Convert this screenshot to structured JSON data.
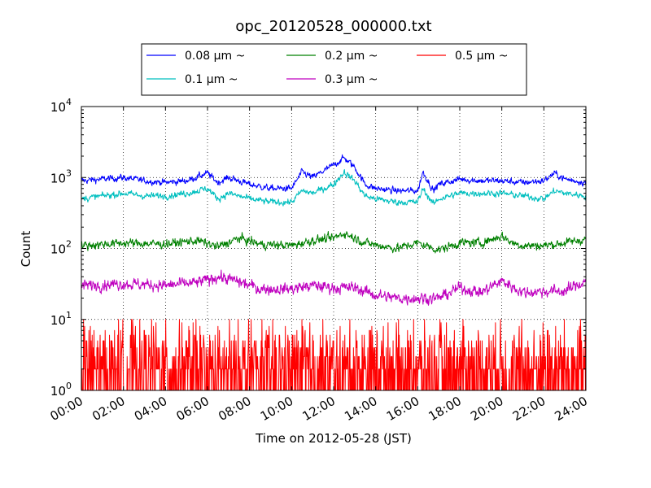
{
  "chart_data": {
    "type": "line",
    "title": "opc_20120528_000000.txt",
    "xlabel": "Time on 2012-05-28 (JST)",
    "ylabel": "Count",
    "y_scale": "log",
    "ylim": [
      1,
      10000
    ],
    "y_ticks": [
      {
        "base": "10",
        "exp": "0",
        "value": 1
      },
      {
        "base": "10",
        "exp": "1",
        "value": 10
      },
      {
        "base": "10",
        "exp": "2",
        "value": 100
      },
      {
        "base": "10",
        "exp": "3",
        "value": 1000
      },
      {
        "base": "10",
        "exp": "4",
        "value": 10000
      }
    ],
    "x_ticks": [
      "00:00",
      "02:00",
      "04:00",
      "06:00",
      "08:00",
      "10:00",
      "12:00",
      "14:00",
      "16:00",
      "18:00",
      "20:00",
      "22:00",
      "24:00"
    ],
    "grid": true,
    "legend_position": "top-center",
    "series": [
      {
        "name": "0.08 μm ~",
        "color": "#0000ff",
        "noise": 0.09,
        "x": [
          "00:00",
          "01:00",
          "02:00",
          "03:00",
          "04:00",
          "05:00",
          "06:00",
          "06:30",
          "07:00",
          "08:00",
          "09:00",
          "10:00",
          "10:30",
          "11:00",
          "12:00",
          "12:30",
          "13:00",
          "13:30",
          "14:00",
          "15:00",
          "16:00",
          "16:15",
          "16:45",
          "17:00",
          "18:00",
          "19:00",
          "20:00",
          "21:00",
          "22:00",
          "22:30",
          "23:00",
          "24:00"
        ],
        "y": [
          900,
          950,
          1000,
          900,
          850,
          900,
          1150,
          850,
          1000,
          800,
          700,
          700,
          1200,
          1000,
          1500,
          1900,
          1400,
          800,
          700,
          650,
          650,
          1200,
          650,
          800,
          950,
          900,
          900,
          850,
          900,
          1150,
          950,
          850
        ]
      },
      {
        "name": "0.1 μm ~",
        "color": "#00bfbf",
        "noise": 0.09,
        "x": [
          "00:00",
          "01:00",
          "02:00",
          "03:00",
          "04:00",
          "05:00",
          "06:00",
          "06:30",
          "07:00",
          "08:00",
          "09:00",
          "10:00",
          "10:30",
          "11:00",
          "12:00",
          "12:30",
          "13:00",
          "13:30",
          "14:00",
          "15:00",
          "16:00",
          "16:15",
          "16:45",
          "17:00",
          "18:00",
          "19:00",
          "20:00",
          "21:00",
          "22:00",
          "22:30",
          "23:00",
          "24:00"
        ],
        "y": [
          500,
          550,
          600,
          550,
          550,
          600,
          700,
          500,
          600,
          500,
          450,
          450,
          650,
          600,
          800,
          1200,
          900,
          550,
          500,
          450,
          450,
          700,
          420,
          500,
          600,
          600,
          600,
          550,
          500,
          650,
          600,
          550
        ]
      },
      {
        "name": "0.2 μm ~",
        "color": "#008000",
        "noise": 0.12,
        "x": [
          "00:00",
          "02:00",
          "04:00",
          "05:30",
          "06:30",
          "07:30",
          "08:30",
          "10:00",
          "11:00",
          "12:00",
          "12:30",
          "13:30",
          "15:00",
          "16:00",
          "17:00",
          "18:00",
          "19:00",
          "20:00",
          "20:30",
          "21:00",
          "22:00",
          "23:00",
          "24:00"
        ],
        "y": [
          110,
          120,
          115,
          130,
          105,
          140,
          115,
          110,
          130,
          140,
          165,
          120,
          100,
          120,
          95,
          120,
          120,
          150,
          120,
          110,
          110,
          120,
          135
        ]
      },
      {
        "name": "0.3 μm ~",
        "color": "#bf00bf",
        "noise": 0.16,
        "x": [
          "00:00",
          "02:00",
          "04:00",
          "05:30",
          "06:30",
          "07:30",
          "08:30",
          "10:00",
          "11:00",
          "12:00",
          "13:00",
          "14:00",
          "15:00",
          "16:00",
          "17:00",
          "18:00",
          "19:00",
          "20:00",
          "21:00",
          "22:00",
          "23:00",
          "24:00"
        ],
        "y": [
          30,
          32,
          30,
          33,
          40,
          34,
          27,
          27,
          30,
          28,
          28,
          22,
          20,
          20,
          20,
          28,
          24,
          35,
          24,
          25,
          25,
          35
        ]
      },
      {
        "name": "0.5 μm ~",
        "color": "#ff0000",
        "noise": 0.0,
        "x": [
          "00:00",
          "24:00"
        ],
        "y": [
          2.5,
          2.5
        ],
        "note_values": "integer counts fluctuating between 1 and about 10"
      }
    ]
  }
}
